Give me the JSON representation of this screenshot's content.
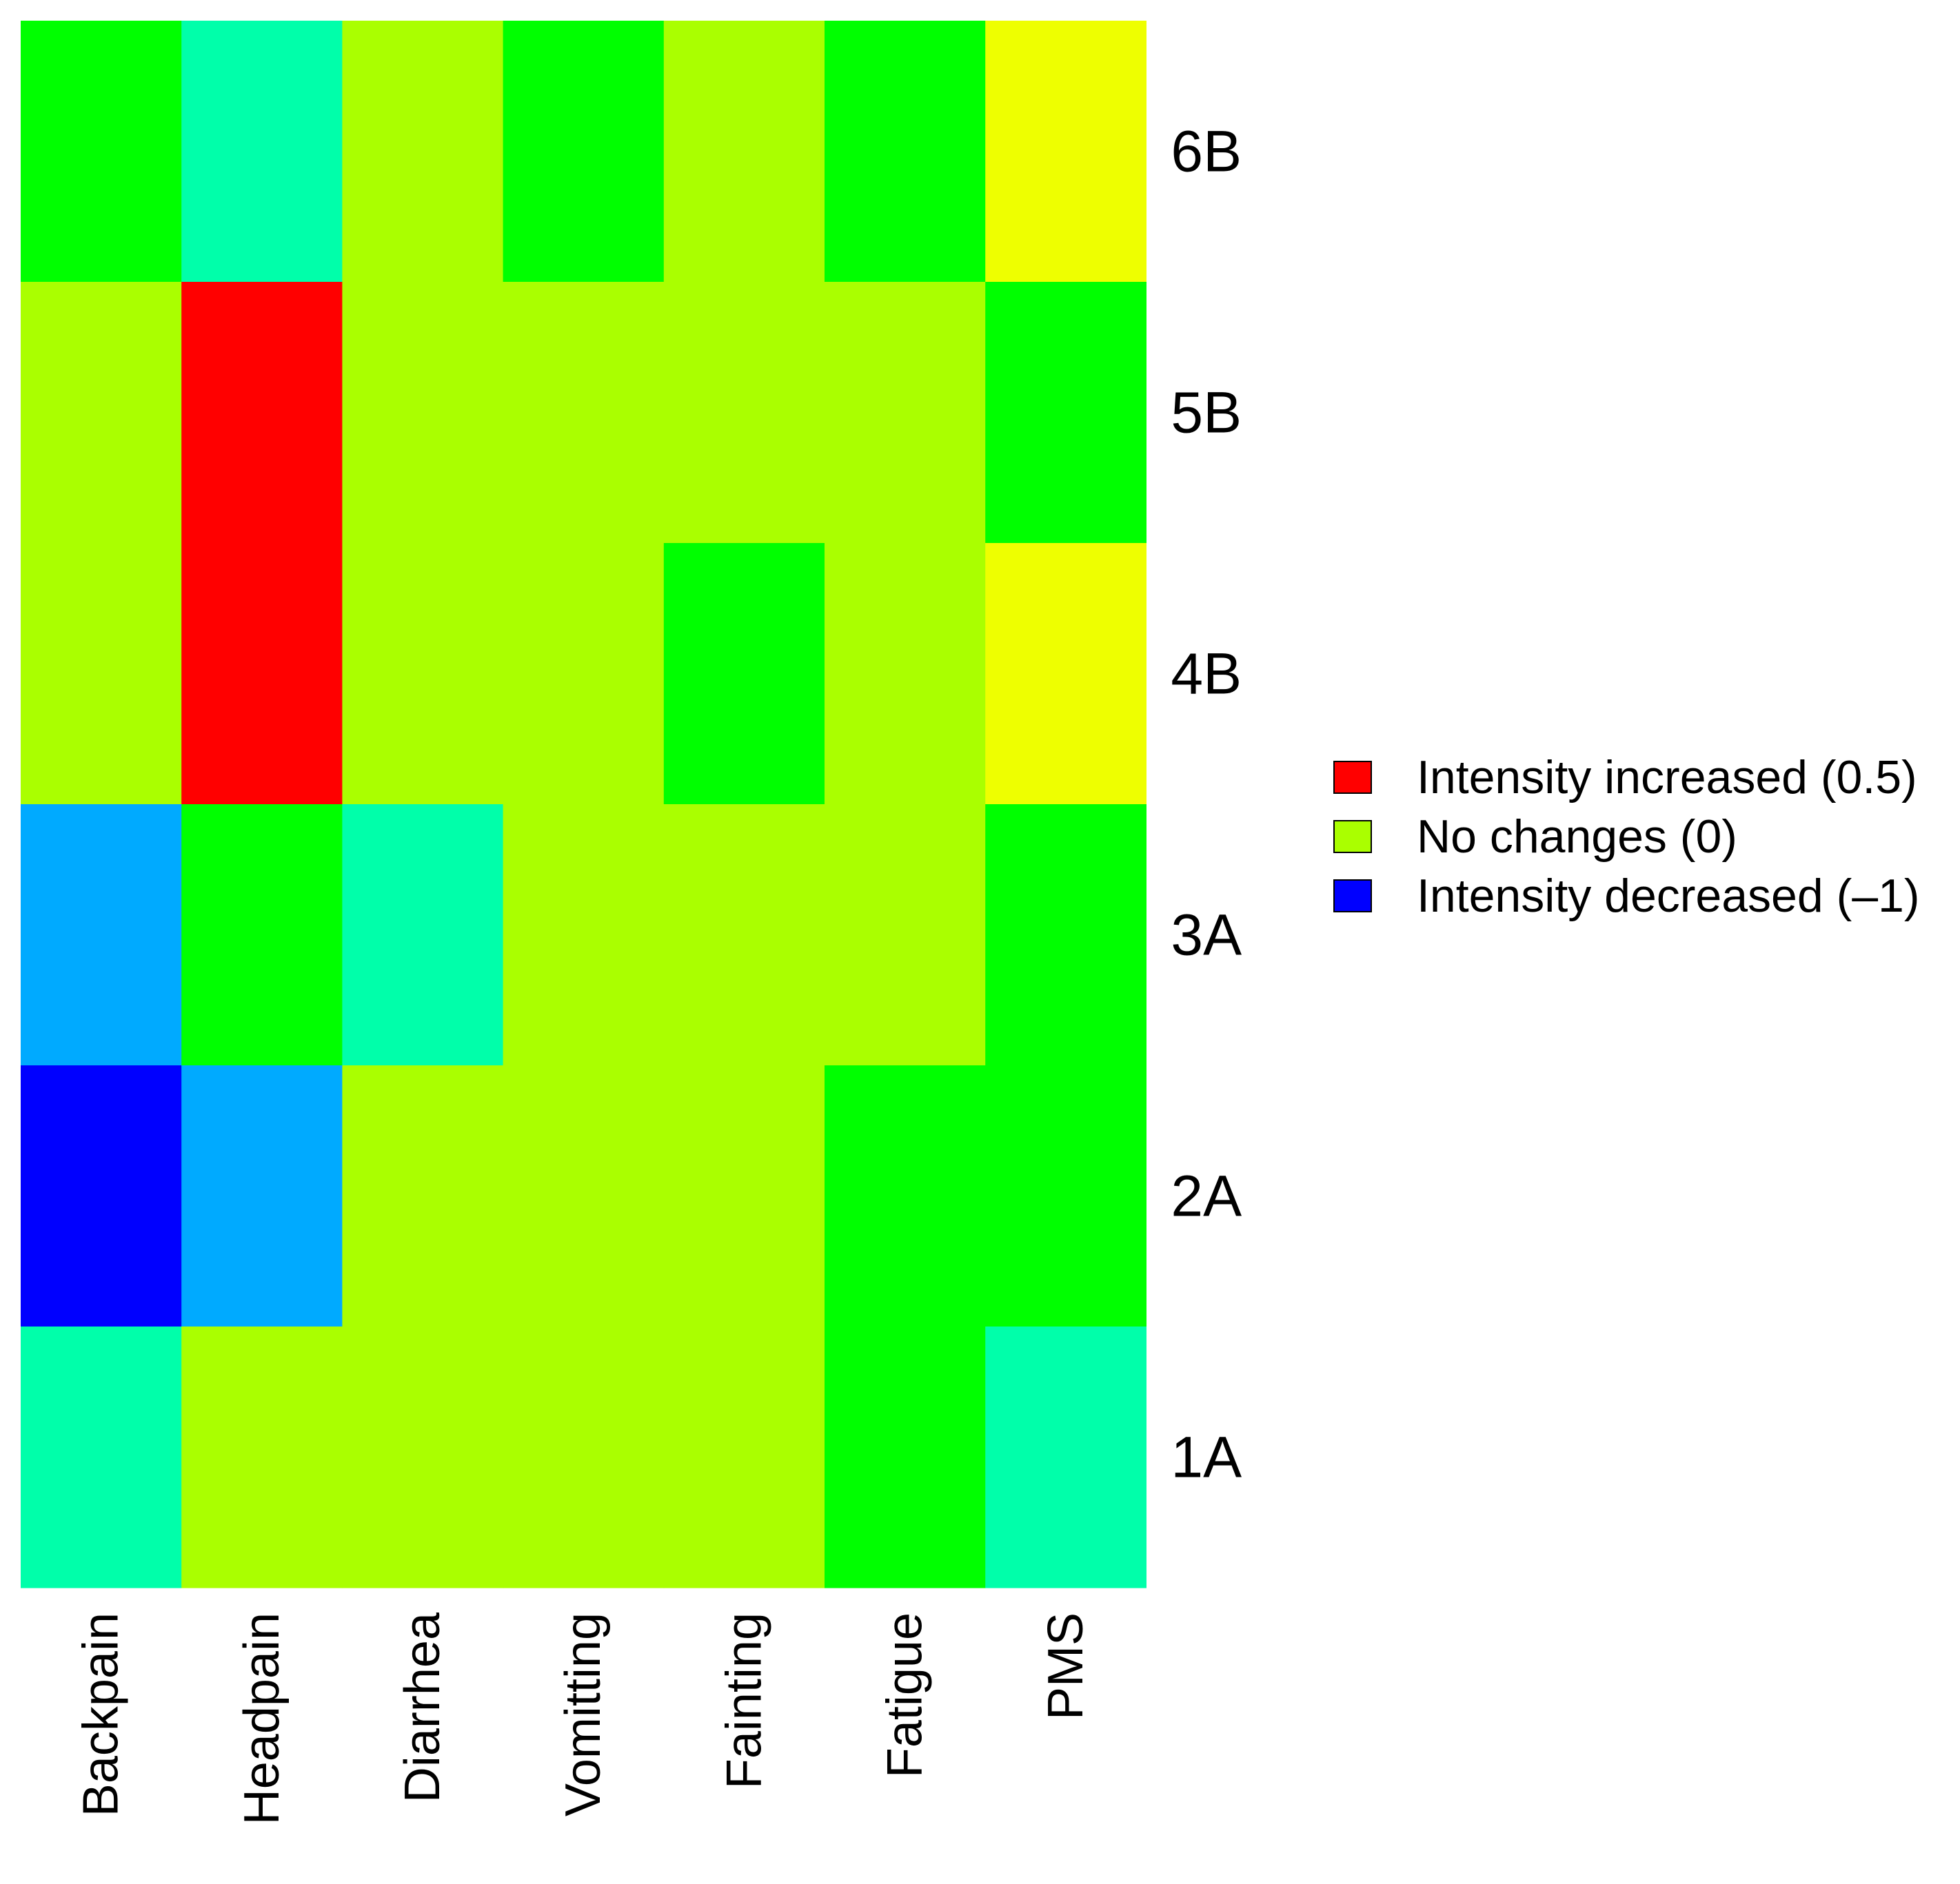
{
  "chart_data": {
    "type": "heatmap",
    "title": "",
    "xlabel": "",
    "ylabel": "",
    "columns": [
      "Backpain",
      "Headpain",
      "Diarrhea",
      "Vomitting",
      "Fainting",
      "Fatigue",
      "PMS"
    ],
    "rows": [
      "6B",
      "5B",
      "4B",
      "3A",
      "2A",
      "1A"
    ],
    "values": [
      [
        -0.25,
        -0.5,
        0,
        -0.25,
        0,
        -0.25,
        0.125
      ],
      [
        0,
        0.5,
        0,
        0,
        0,
        0,
        -0.25
      ],
      [
        0,
        0.5,
        0,
        0,
        -0.25,
        0,
        0.125
      ],
      [
        -0.75,
        -0.25,
        -0.5,
        0,
        0,
        0,
        -0.25
      ],
      [
        -1,
        -0.75,
        0,
        0,
        0,
        -0.25,
        -0.25
      ],
      [
        -0.5,
        0,
        0,
        0,
        0,
        -0.25,
        -0.5
      ]
    ],
    "scale": {
      "min": -1,
      "max": 0.5,
      "colors": [
        {
          "value": -1,
          "color": "#0000ff"
        },
        {
          "value": -0.75,
          "color": "#00aaff"
        },
        {
          "value": -0.5,
          "color": "#00ffaa"
        },
        {
          "value": -0.25,
          "color": "#00ff00"
        },
        {
          "value": 0,
          "color": "#aaff00"
        },
        {
          "value": 0.125,
          "color": "#eeff00"
        },
        {
          "value": 0.5,
          "color": "#ff0000"
        }
      ]
    },
    "legend": {
      "position": "right",
      "entries": [
        {
          "label": "Intensity increased (0.5)",
          "color": "#ff0000"
        },
        {
          "label": "No changes (0)",
          "color": "#aaff00"
        },
        {
          "label": "Intensity decreased (–1)",
          "color": "#0000ff"
        }
      ]
    }
  }
}
